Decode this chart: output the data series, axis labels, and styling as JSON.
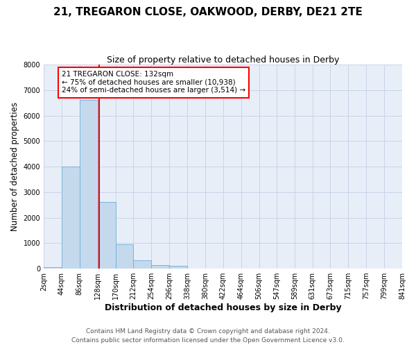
{
  "title": "21, TREGARON CLOSE, OAKWOOD, DERBY, DE21 2TE",
  "subtitle": "Size of property relative to detached houses in Derby",
  "xlabel": "Distribution of detached houses by size in Derby",
  "ylabel": "Number of detached properties",
  "footer_line1": "Contains HM Land Registry data © Crown copyright and database right 2024.",
  "footer_line2": "Contains public sector information licensed under the Open Government Licence v3.0.",
  "bin_edges": [
    2,
    44,
    86,
    128,
    170,
    212,
    254,
    296,
    338,
    380,
    422,
    464,
    506,
    547,
    589,
    631,
    673,
    715,
    757,
    799,
    841
  ],
  "bin_labels": [
    "2sqm",
    "44sqm",
    "86sqm",
    "128sqm",
    "170sqm",
    "212sqm",
    "254sqm",
    "296sqm",
    "338sqm",
    "380sqm",
    "422sqm",
    "464sqm",
    "506sqm",
    "547sqm",
    "589sqm",
    "631sqm",
    "673sqm",
    "715sqm",
    "757sqm",
    "799sqm",
    "841sqm"
  ],
  "bar_heights": [
    50,
    4000,
    6600,
    2620,
    960,
    320,
    130,
    100,
    0,
    0,
    0,
    0,
    0,
    0,
    0,
    0,
    0,
    0,
    0,
    0
  ],
  "bar_color": "#c5d9ed",
  "bar_edgecolor": "#6baed6",
  "property_value": 132,
  "vline_color": "red",
  "annotation_text": "21 TREGARON CLOSE: 132sqm\n← 75% of detached houses are smaller (10,938)\n24% of semi-detached houses are larger (3,514) →",
  "annotation_box_edgecolor": "red",
  "annotation_box_facecolor": "white",
  "ylim": [
    0,
    8000
  ],
  "yticks": [
    0,
    1000,
    2000,
    3000,
    4000,
    5000,
    6000,
    7000,
    8000
  ],
  "grid_color": "#c8d4e8",
  "background_color": "#e8eef8",
  "title_fontsize": 11,
  "subtitle_fontsize": 9,
  "axis_label_fontsize": 8.5,
  "tick_fontsize": 7,
  "footer_fontsize": 6.5,
  "annotation_fontsize": 7.5
}
